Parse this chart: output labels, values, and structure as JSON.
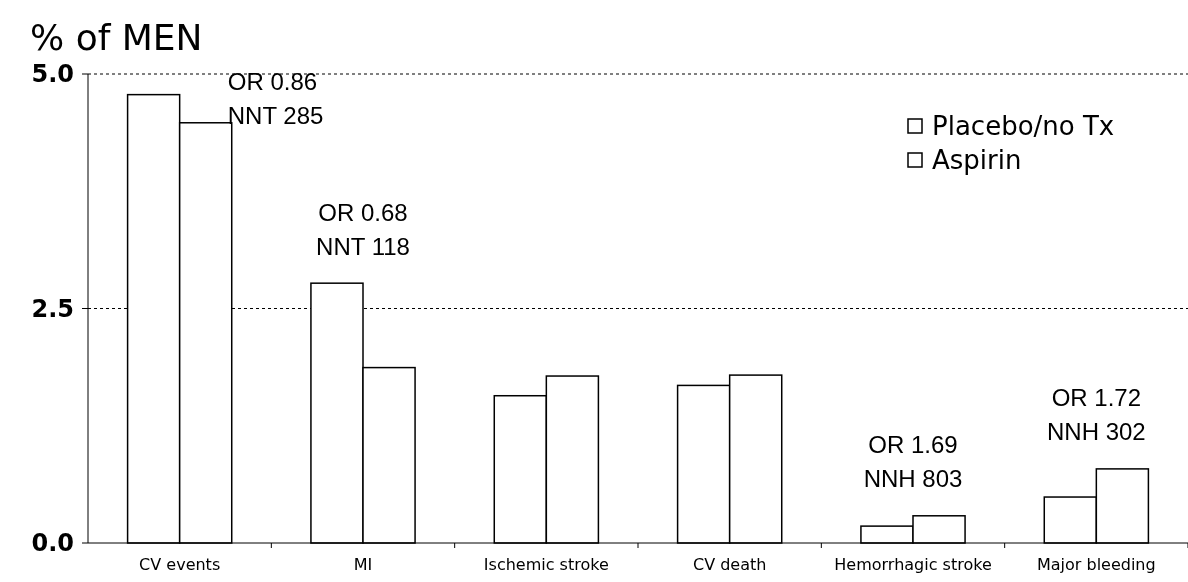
{
  "chart_data": {
    "type": "bar",
    "title": "% of MEN",
    "categories": [
      "CV events",
      "MI",
      "Ischemic stroke",
      "CV death",
      "Hemorrhagic stroke",
      "Major bleeding"
    ],
    "series": [
      {
        "name": "Placebo/no Tx",
        "color": "#ffffff",
        "values": [
          4.78,
          2.77,
          1.57,
          1.68,
          0.18,
          0.49
        ]
      },
      {
        "name": "Aspirin",
        "color": "#ffffff",
        "values": [
          4.48,
          1.87,
          1.78,
          1.79,
          0.29,
          0.79
        ]
      }
    ],
    "ylim": [
      0,
      5
    ],
    "yticks": [
      {
        "value": 0,
        "label": "0.0"
      },
      {
        "value": 2.5,
        "label": "2.5"
      },
      {
        "value": 5,
        "label": "5.0"
      }
    ],
    "grid": "y",
    "legend": "top right",
    "annotations": [
      {
        "text": "OR 0.86\nNNT 285",
        "x": "CV events",
        "y": 4.48
      },
      {
        "text": "OR 0.68\nNNT 118",
        "x": "MI",
        "y": 2.77
      },
      {
        "text": "OR 1.69\nNNH 803",
        "x": "Hemorrhagic stroke",
        "y": 0.29
      },
      {
        "text": "OR 1.72\nNNH 302",
        "x": "Major bleeding",
        "y": 0.79
      }
    ]
  }
}
